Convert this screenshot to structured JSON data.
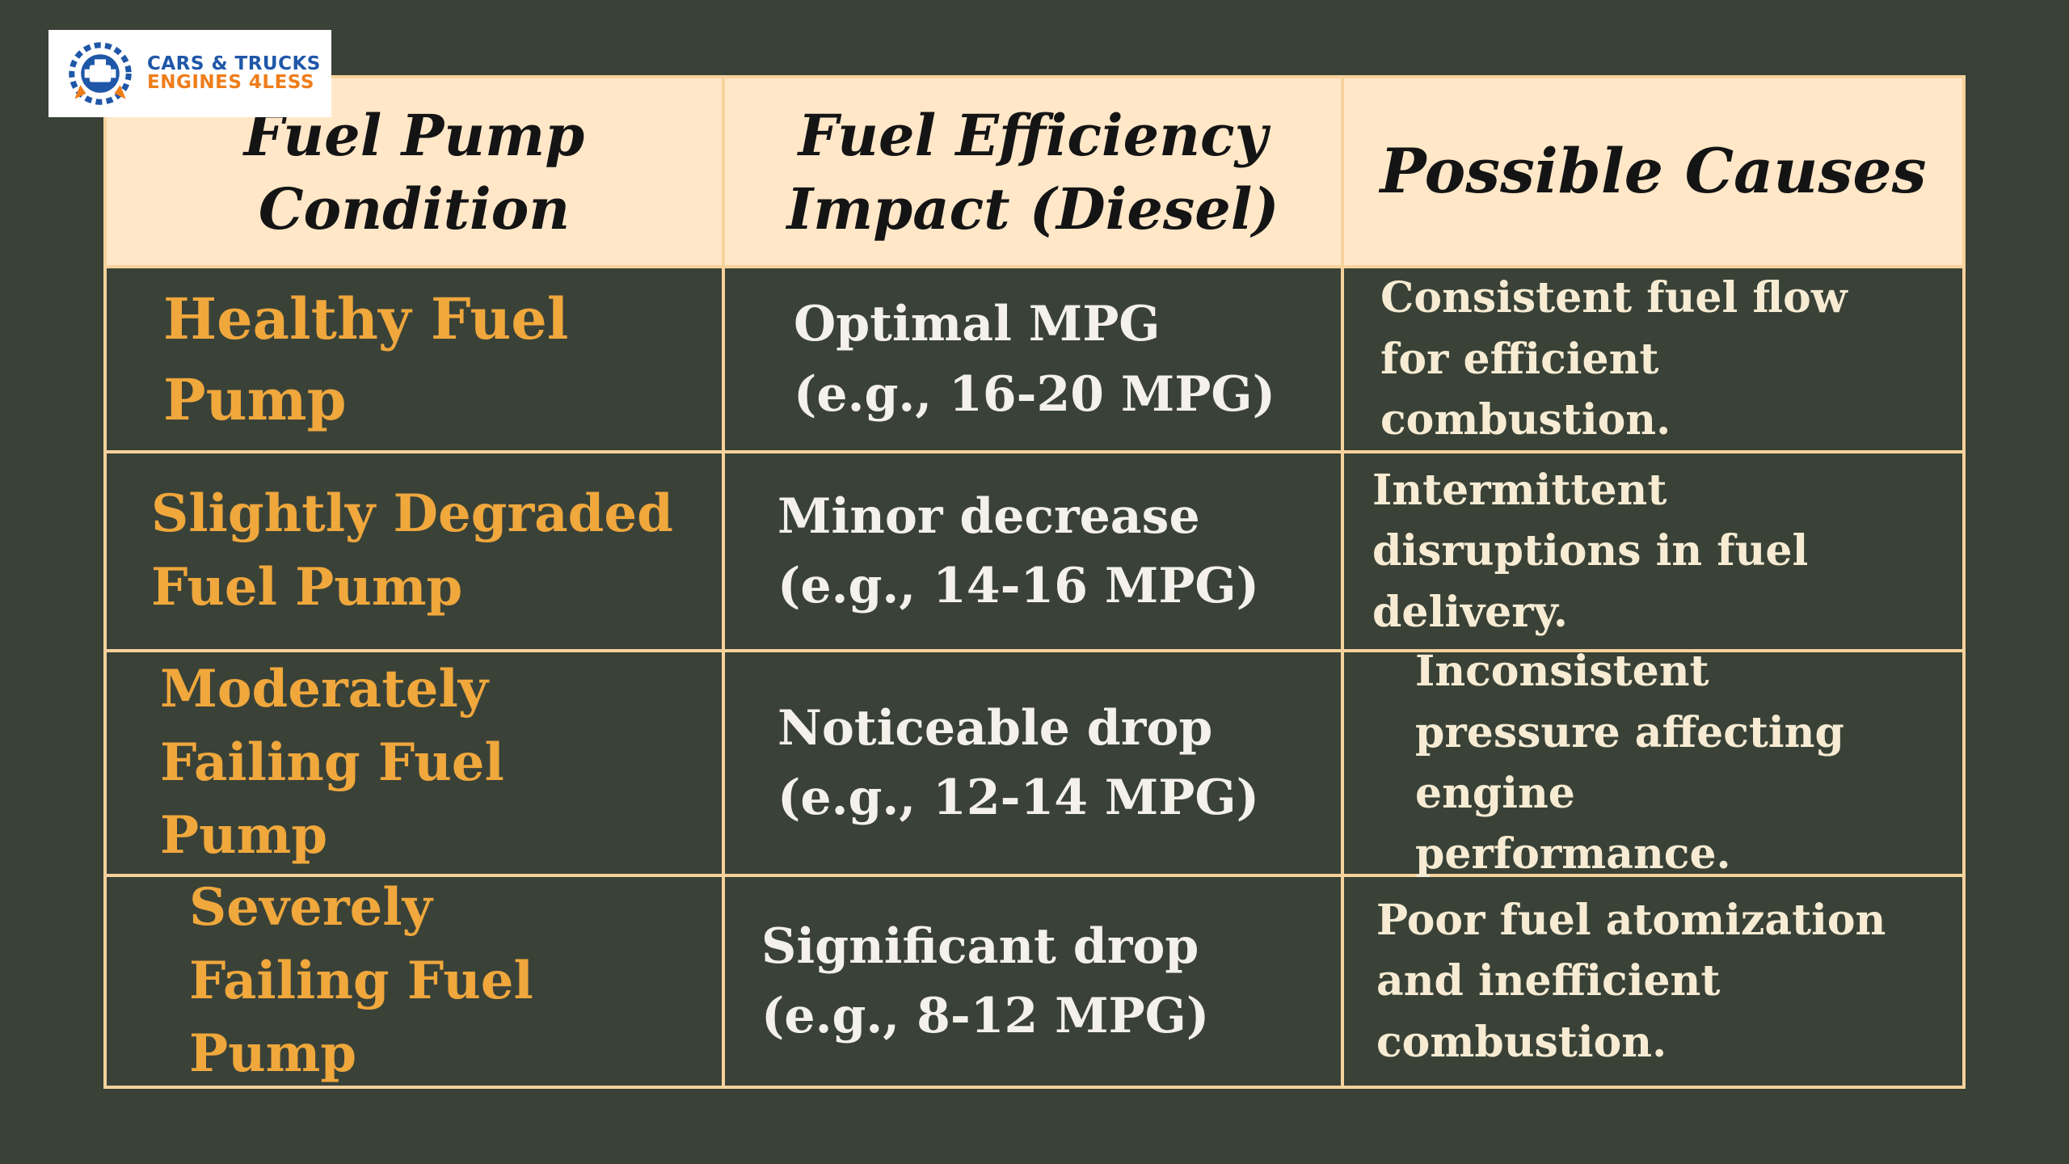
{
  "logo": {
    "line1": "CARS & TRUCKS",
    "line2": "ENGINES 4LESS",
    "icon": "engine-badge-icon",
    "colors": {
      "blue": "#1f57a8",
      "orange": "#ef7d1a"
    }
  },
  "table": {
    "headers": [
      "Fuel Pump Condition",
      "Fuel Efficiency Impact (Diesel)",
      "Possible Causes"
    ],
    "rows": [
      {
        "condition": "Healthy Fuel Pump",
        "impact": "Optimal MPG (e.g., 16-20 MPG)",
        "cause": "Consistent fuel flow for efficient combustion."
      },
      {
        "condition": "Slightly Degraded Fuel Pump",
        "impact": "Minor decrease (e.g., 14-16 MPG)",
        "cause": "Intermittent disruptions in fuel delivery."
      },
      {
        "condition": "Moderately Failing Fuel Pump",
        "impact": "Noticeable drop (e.g., 12-14 MPG)",
        "cause": "Inconsistent pressure affecting engine performance."
      },
      {
        "condition": "Severely Failing Fuel Pump",
        "impact": "Significant drop (e.g., 8-12 MPG)",
        "cause": "Poor fuel atomization and inefficient combustion."
      }
    ]
  },
  "colors": {
    "background": "#3a4238",
    "header_background": "#ffe7c8",
    "border": "#f7d29c",
    "condition_text": "#f0a73c",
    "body_text": "#f4f1ea"
  }
}
